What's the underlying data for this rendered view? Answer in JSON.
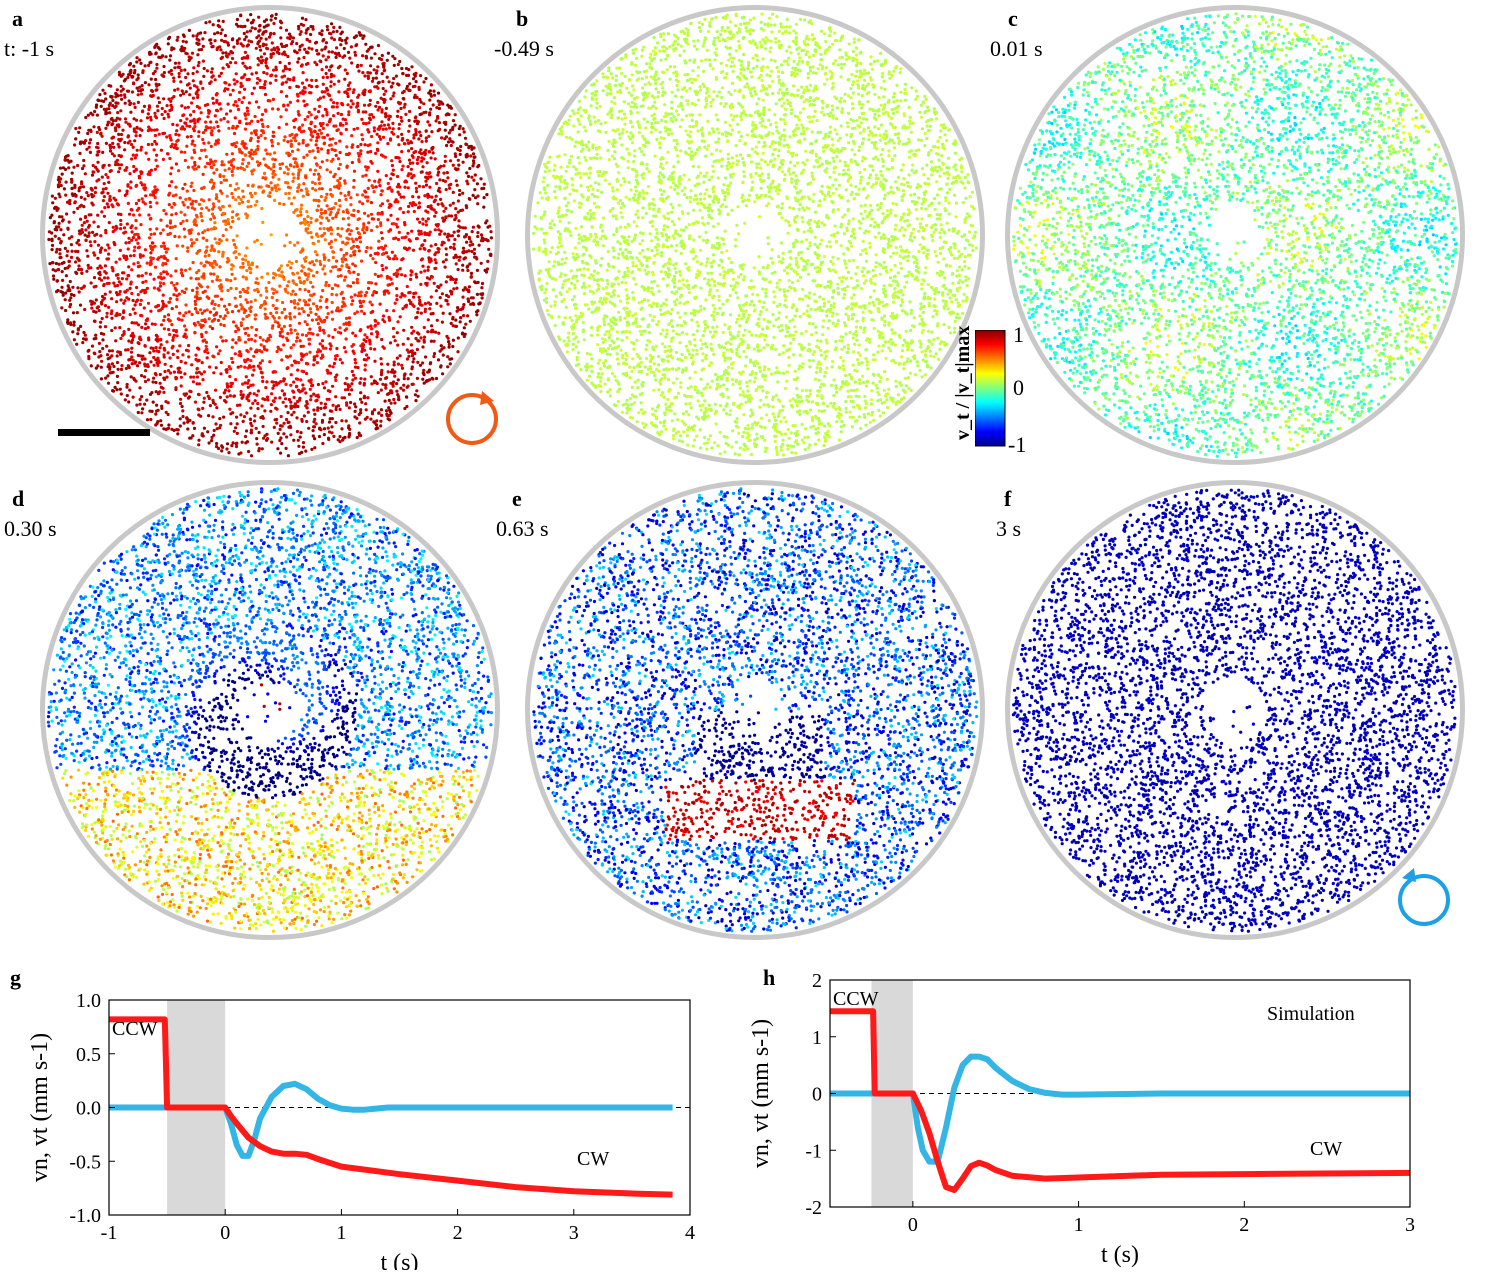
{
  "panels": [
    {
      "letter": "a",
      "time": "t: -1 s"
    },
    {
      "letter": "b",
      "time": "-0.49 s"
    },
    {
      "letter": "c",
      "time": "0.01 s"
    },
    {
      "letter": "d",
      "time": "0.30 s"
    },
    {
      "letter": "e",
      "time": "0.63 s"
    },
    {
      "letter": "f",
      "time": "3 s"
    }
  ],
  "colorbar": {
    "label": "v_t / |v_t|max",
    "ticks": [
      "1",
      "0",
      "-1"
    ]
  },
  "rotation_icons": {
    "ccw_color": "#f05a14",
    "cw_color": "#1ea0e6"
  },
  "colors": {
    "vn": "#33b5e5",
    "vt": "#ff1a1a",
    "shade": "#d9d9d9",
    "ring": "#c8c8c8"
  },
  "chart_data": [
    {
      "panel": "g",
      "type": "line",
      "xlabel": "t (s)",
      "ylabel": "vn, vt (mm s-1)",
      "xlim": [
        -1,
        4
      ],
      "ylim": [
        -1.0,
        1.0
      ],
      "xticks": [
        "-1",
        "0",
        "1",
        "2",
        "3",
        "4"
      ],
      "yticks": [
        "1.0",
        "0.5",
        "0.0",
        "-0.5",
        "-1.0"
      ],
      "shaded_interval": [
        -0.5,
        0.0
      ],
      "annotations": [
        "CCW",
        "CW"
      ],
      "series": [
        {
          "name": "vn",
          "x": [
            -1,
            -0.5,
            0,
            0.05,
            0.1,
            0.15,
            0.2,
            0.25,
            0.3,
            0.4,
            0.5,
            0.6,
            0.7,
            0.8,
            0.9,
            1.0,
            1.1,
            1.2,
            1.4,
            2,
            3,
            3.85
          ],
          "y": [
            0,
            0,
            0,
            -0.15,
            -0.35,
            -0.45,
            -0.45,
            -0.3,
            -0.1,
            0.1,
            0.2,
            0.22,
            0.17,
            0.08,
            0.02,
            -0.01,
            -0.02,
            -0.02,
            0,
            0,
            0,
            0
          ]
        },
        {
          "name": "vt",
          "x": [
            -1,
            -0.52,
            -0.5,
            0,
            0.05,
            0.1,
            0.2,
            0.3,
            0.4,
            0.5,
            0.6,
            0.7,
            0.8,
            1.0,
            1.5,
            2.0,
            2.5,
            3.0,
            3.5,
            3.85
          ],
          "y": [
            0.82,
            0.82,
            0.0,
            0.0,
            -0.08,
            -0.15,
            -0.28,
            -0.36,
            -0.41,
            -0.43,
            -0.43,
            -0.44,
            -0.48,
            -0.55,
            -0.62,
            -0.68,
            -0.74,
            -0.78,
            -0.8,
            -0.81
          ]
        }
      ]
    },
    {
      "panel": "h",
      "type": "line",
      "title": "Simulation",
      "xlabel": "t (s)",
      "ylabel": "vn, vt (mm s-1)",
      "xlim": [
        -0.5,
        3
      ],
      "ylim": [
        -2,
        2
      ],
      "xticks": [
        "0",
        "1",
        "2",
        "3"
      ],
      "yticks": [
        "2",
        "1",
        "0",
        "-1",
        "-2"
      ],
      "shaded_interval": [
        -0.25,
        0.0
      ],
      "annotations": [
        "CCW",
        "CW"
      ],
      "series": [
        {
          "name": "vn",
          "x": [
            -0.5,
            -0.25,
            0,
            0.03,
            0.06,
            0.1,
            0.15,
            0.2,
            0.25,
            0.3,
            0.35,
            0.4,
            0.45,
            0.5,
            0.6,
            0.7,
            0.8,
            0.9,
            1.0,
            1.5,
            2,
            3
          ],
          "y": [
            0,
            0,
            0,
            -0.6,
            -1.0,
            -1.2,
            -1.2,
            -0.6,
            0.1,
            0.5,
            0.65,
            0.65,
            0.6,
            0.45,
            0.22,
            0.08,
            0.01,
            -0.02,
            -0.02,
            0,
            0,
            0
          ]
        },
        {
          "name": "vt",
          "x": [
            -0.5,
            -0.24,
            -0.23,
            0,
            0.05,
            0.1,
            0.15,
            0.2,
            0.25,
            0.3,
            0.35,
            0.4,
            0.45,
            0.5,
            0.6,
            0.8,
            1.0,
            1.5,
            2.0,
            3.0
          ],
          "y": [
            1.45,
            1.45,
            0,
            0,
            -0.3,
            -0.7,
            -1.2,
            -1.65,
            -1.7,
            -1.5,
            -1.28,
            -1.22,
            -1.27,
            -1.35,
            -1.45,
            -1.5,
            -1.48,
            -1.43,
            -1.42,
            -1.4
          ]
        }
      ]
    }
  ]
}
